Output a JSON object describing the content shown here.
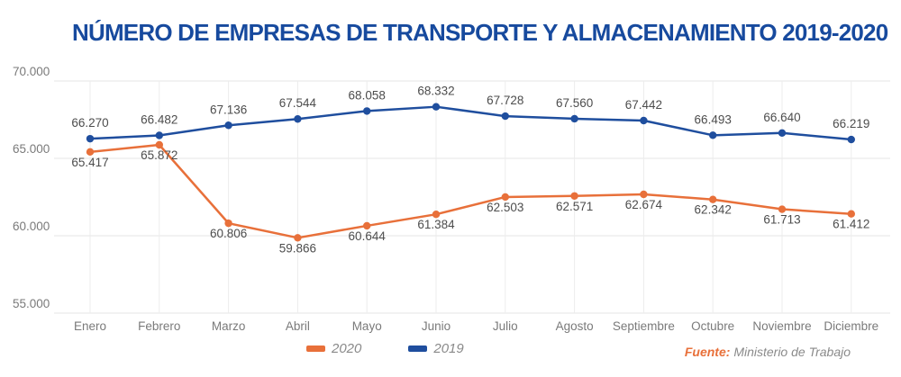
{
  "title": "NÚMERO DE EMPRESAS DE TRANSPORTE Y ALMACENAMIENTO 2019-2020",
  "source": {
    "prefix": "Fuente:",
    "text": "Ministerio de Trabajo"
  },
  "legend": [
    {
      "label": "2020",
      "color": "#E8703A"
    },
    {
      "label": "2019",
      "color": "#1F4E9E"
    }
  ],
  "colors": {
    "title": "#174A9E",
    "gridline": "#e6e6e6",
    "axis_text": "#7a7a7a",
    "data_label": "#4d4d4d",
    "series_2020": "#E8703A",
    "series_2019": "#1F4E9E"
  },
  "chart_data": {
    "type": "line",
    "title": "NÚMERO DE EMPRESAS DE TRANSPORTE Y ALMACENAMIENTO 2019-2020",
    "categories": [
      "Enero",
      "Febrero",
      "Marzo",
      "Abril",
      "Mayo",
      "Junio",
      "Julio",
      "Agosto",
      "Septiembre",
      "Octubre",
      "Noviembre",
      "Diciembre"
    ],
    "series": [
      {
        "name": "2020",
        "color": "#E8703A",
        "label_position": "below",
        "values": [
          65417,
          65872,
          60806,
          59866,
          60644,
          61384,
          62503,
          62571,
          62674,
          62342,
          61713,
          61412
        ],
        "labels": [
          "65.417",
          "65.872",
          "60.806",
          "59.866",
          "60.644",
          "61.384",
          "62.503",
          "62.571",
          "62.674",
          "62.342",
          "61.713",
          "61.412"
        ]
      },
      {
        "name": "2019",
        "color": "#1F4E9E",
        "label_position": "above",
        "values": [
          66270,
          66482,
          67136,
          67544,
          68058,
          68332,
          67728,
          67560,
          67442,
          66493,
          66640,
          66219
        ],
        "labels": [
          "66.270",
          "66.482",
          "67.136",
          "67.544",
          "68.058",
          "68.332",
          "67.728",
          "67.560",
          "67.442",
          "66.493",
          "66.640",
          "66.219"
        ]
      }
    ],
    "ylim": [
      55000,
      70000
    ],
    "yticks": [
      {
        "value": 70000,
        "label": "70.000"
      },
      {
        "value": 65000,
        "label": "65.000"
      },
      {
        "value": 60000,
        "label": "60.000"
      },
      {
        "value": 55000,
        "label": "55.000"
      }
    ],
    "grid": true,
    "legend_position": "bottom",
    "xlabel": "",
    "ylabel": ""
  }
}
